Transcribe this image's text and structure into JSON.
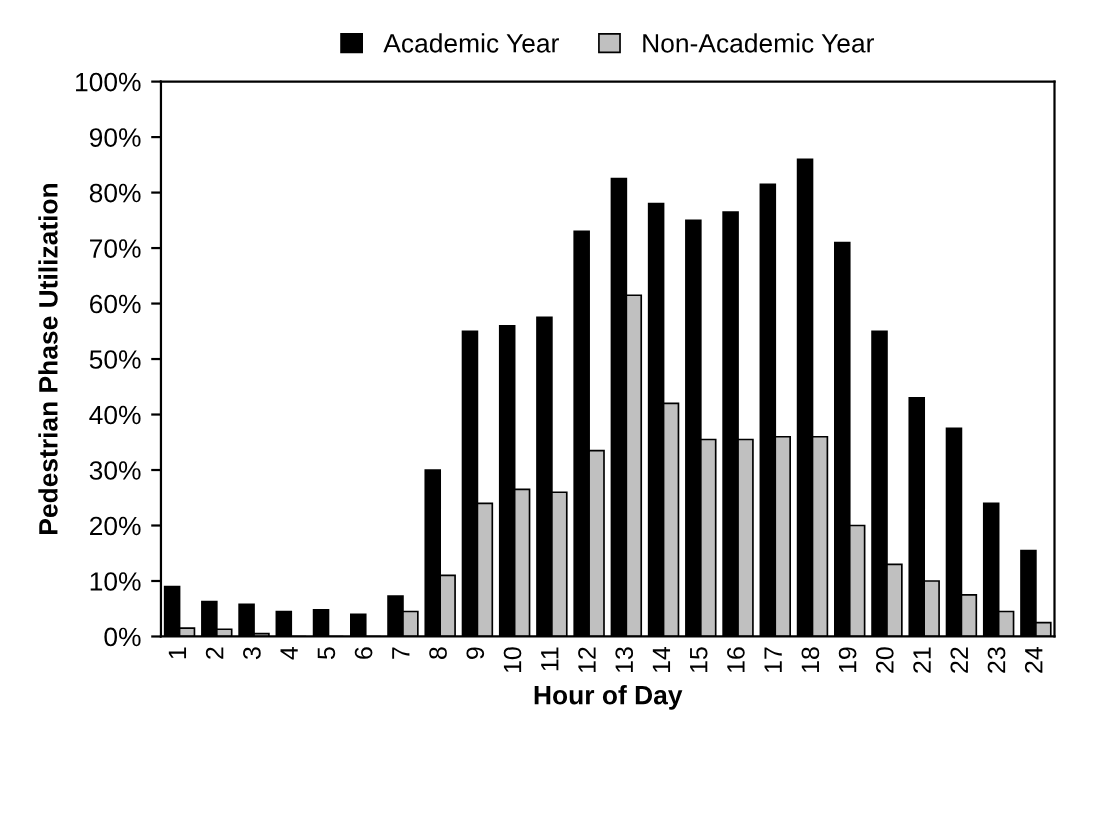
{
  "chart_data": {
    "type": "bar",
    "xlabel": "Hour of Day",
    "ylabel": "Pedestrian Phase Utilization",
    "categories": [
      "1",
      "2",
      "3",
      "4",
      "5",
      "6",
      "7",
      "8",
      "9",
      "10",
      "11",
      "12",
      "13",
      "14",
      "15",
      "16",
      "17",
      "18",
      "19",
      "20",
      "21",
      "22",
      "23",
      "24"
    ],
    "series": [
      {
        "name": "Academic Year",
        "color": "#000000",
        "values": [
          9,
          6.3,
          5.8,
          4.5,
          4.8,
          4,
          7.3,
          30,
          55,
          56,
          57.5,
          73,
          82.5,
          78,
          75,
          76.5,
          81.5,
          86,
          71,
          55,
          43,
          37.5,
          24,
          15.5
        ]
      },
      {
        "name": "Non-Academic Year",
        "color": "#c0c0c0",
        "values": [
          1.5,
          1.3,
          0.5,
          null,
          null,
          null,
          4.5,
          11,
          24,
          26.5,
          26,
          33.5,
          61.5,
          42,
          35.5,
          35.5,
          36,
          36,
          20,
          13,
          10,
          7.5,
          4.5,
          2.5
        ]
      }
    ],
    "ylim": [
      0,
      100
    ],
    "yticks": [
      {
        "value": 0,
        "label": "0%"
      },
      {
        "value": 10,
        "label": "10%"
      },
      {
        "value": 20,
        "label": "20%"
      },
      {
        "value": 30,
        "label": "30%"
      },
      {
        "value": 40,
        "label": "40%"
      },
      {
        "value": 50,
        "label": "50%"
      },
      {
        "value": 60,
        "label": "60%"
      },
      {
        "value": 70,
        "label": "70%"
      },
      {
        "value": 80,
        "label": "80%"
      },
      {
        "value": 90,
        "label": "90%"
      },
      {
        "value": 100,
        "label": "100%"
      }
    ],
    "grid": false,
    "legend": "top"
  }
}
